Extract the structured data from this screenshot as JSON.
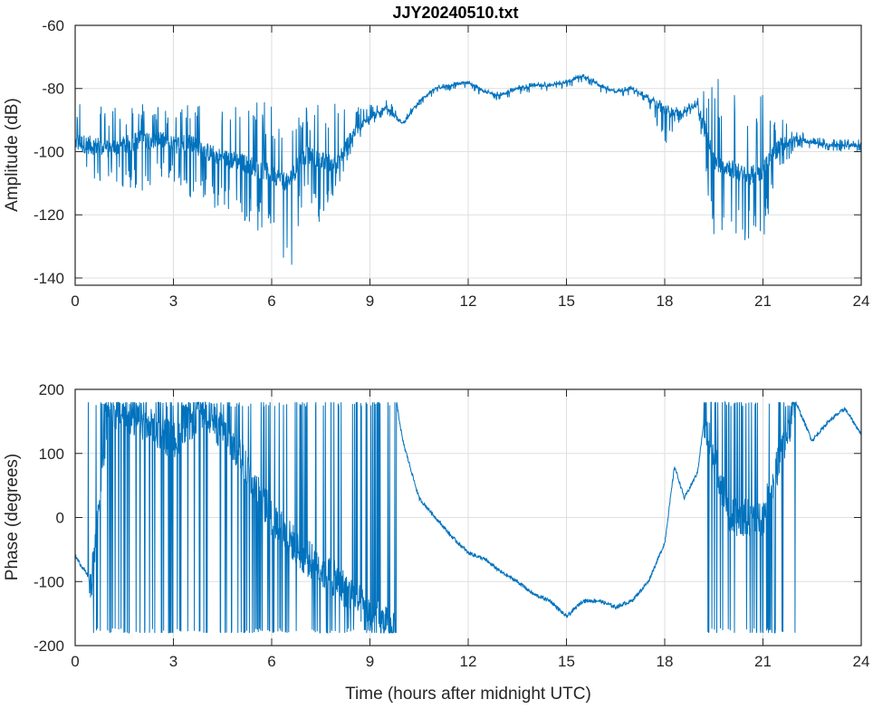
{
  "chart_data": [
    {
      "type": "line",
      "title": "JJY20240510.txt",
      "xlabel": "",
      "ylabel": "Amplitude (dB)",
      "xlim": [
        0,
        24
      ],
      "ylim": [
        -142.3,
        -60
      ],
      "xticks": [
        0,
        3,
        6,
        9,
        12,
        15,
        18,
        21,
        24
      ],
      "yticks": [
        -60,
        -80,
        -100,
        -120,
        -140
      ],
      "grid": true,
      "color": "#0072BD",
      "x": [
        0,
        0.5,
        1,
        1.5,
        2,
        2.5,
        3,
        3.5,
        4,
        4.5,
        5,
        5.5,
        6,
        6.5,
        7,
        7.5,
        8,
        8.5,
        9,
        9.5,
        10,
        10.5,
        11,
        11.5,
        12,
        12.5,
        13,
        13.5,
        14,
        14.5,
        15,
        15.5,
        16,
        16.5,
        17,
        17.5,
        18,
        18.5,
        19,
        19.5,
        20,
        20.5,
        21,
        21.5,
        22,
        22.5,
        23,
        23.5,
        24
      ],
      "mean": [
        -97,
        -98,
        -99,
        -98,
        -96,
        -96,
        -98,
        -97,
        -100,
        -102,
        -103,
        -105,
        -107,
        -110,
        -101,
        -103,
        -104,
        -94,
        -89,
        -86,
        -91,
        -84,
        -80,
        -79,
        -78,
        -81,
        -82,
        -80,
        -79,
        -79,
        -78,
        -76,
        -79,
        -81,
        -80,
        -83,
        -87,
        -88,
        -85,
        -103,
        -105,
        -108,
        -106,
        -98,
        -96,
        -97,
        -98,
        -98,
        -98
      ],
      "lower_envelope": [
        -102,
        -110,
        -110,
        -112,
        -114,
        -110,
        -110,
        -115,
        -116,
        -120,
        -121,
        -125,
        -127,
        -142,
        -115,
        -123,
        -112,
        -98,
        -92,
        -88,
        -92,
        -86,
        -82,
        -81,
        -80,
        -83,
        -84,
        -82,
        -81,
        -81,
        -80,
        -78,
        -81,
        -83,
        -82,
        -85,
        -98,
        -90,
        -87,
        -128,
        -125,
        -130,
        -128,
        -106,
        -100,
        -99,
        -100,
        -100,
        -100
      ],
      "upper_envelope": [
        -87,
        -76,
        -86,
        -85,
        -85,
        -85,
        -85,
        -85,
        -84,
        -84,
        -85,
        -84,
        -84,
        -85,
        -85,
        -84,
        -84,
        -86,
        -85,
        -83,
        -89,
        -83,
        -79,
        -78,
        -77,
        -80,
        -81,
        -79,
        -78,
        -78,
        -77,
        -75,
        -78,
        -80,
        -79,
        -82,
        -84,
        -86,
        -83,
        -76,
        -78,
        -80,
        -82,
        -88,
        -93,
        -95,
        -96,
        -96,
        -96
      ]
    },
    {
      "type": "line",
      "title": "",
      "xlabel": "Time (hours after midnight UTC)",
      "ylabel": "Phase (degrees)",
      "xlim": [
        0,
        24
      ],
      "ylim": [
        -200,
        200
      ],
      "xticks": [
        0,
        3,
        6,
        9,
        12,
        15,
        18,
        21,
        24
      ],
      "yticks": [
        200,
        100,
        0,
        -100,
        -200
      ],
      "grid": true,
      "color": "#0072BD",
      "trend_x": [
        0,
        0.5,
        1,
        2,
        3,
        3.9,
        5,
        6,
        7,
        8,
        9,
        9.8,
        9.81,
        10,
        10.5,
        11,
        11.5,
        12,
        12.5,
        13,
        13.5,
        14,
        14.5,
        15,
        15.5,
        16,
        16.5,
        17,
        17.5,
        18,
        18.3,
        18.6,
        19,
        19.2,
        20,
        21,
        22,
        22.5,
        23,
        23.5,
        24
      ],
      "trend_y": [
        -60,
        -100,
        170,
        150,
        120,
        170,
        100,
        0,
        -60,
        -100,
        -150,
        -180,
        180,
        120,
        30,
        0,
        -30,
        -55,
        -65,
        -85,
        -100,
        -120,
        -130,
        -155,
        -130,
        -130,
        -140,
        -130,
        -100,
        -40,
        80,
        30,
        70,
        150,
        0,
        0,
        180,
        120,
        150,
        170,
        130
      ],
      "wrapped_regions": [
        [
          0.4,
          9.8
        ],
        [
          19.2,
          22.0
        ]
      ]
    }
  ]
}
